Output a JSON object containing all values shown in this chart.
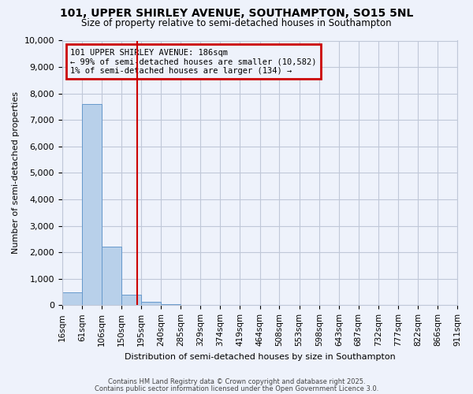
{
  "title": "101, UPPER SHIRLEY AVENUE, SOUTHAMPTON, SO15 5NL",
  "subtitle": "Size of property relative to semi-detached houses in Southampton",
  "xlabel": "Distribution of semi-detached houses by size in Southampton",
  "ylabel": "Number of semi-detached properties",
  "bg_color": "#eef2fb",
  "bar_color": "#b8d0ea",
  "bar_edge_color": "#6699cc",
  "grid_color": "#c0c8d8",
  "vline_color": "#cc0000",
  "vline_x": 186,
  "annotation_line1": "101 UPPER SHIRLEY AVENUE: 186sqm",
  "annotation_line2": "← 99% of semi-detached houses are smaller (10,582)",
  "annotation_line3": "1% of semi-detached houses are larger (134) →",
  "annotation_box_color": "#cc0000",
  "bin_edges": [
    16,
    61,
    106,
    150,
    195,
    240,
    285,
    329,
    374,
    419,
    464,
    508,
    553,
    598,
    643,
    687,
    732,
    777,
    822,
    866,
    911
  ],
  "bin_labels": [
    "16sqm",
    "61sqm",
    "106sqm",
    "150sqm",
    "195sqm",
    "240sqm",
    "285sqm",
    "329sqm",
    "374sqm",
    "419sqm",
    "464sqm",
    "508sqm",
    "553sqm",
    "598sqm",
    "643sqm",
    "687sqm",
    "732sqm",
    "777sqm",
    "822sqm",
    "866sqm",
    "911sqm"
  ],
  "bar_heights": [
    500,
    7600,
    2200,
    400,
    130,
    50,
    10,
    5,
    2,
    1,
    0,
    0,
    0,
    0,
    0,
    0,
    0,
    0,
    0,
    0
  ],
  "ylim": [
    0,
    10000
  ],
  "yticks": [
    0,
    1000,
    2000,
    3000,
    4000,
    5000,
    6000,
    7000,
    8000,
    9000,
    10000
  ],
  "footer1": "Contains HM Land Registry data © Crown copyright and database right 2025.",
  "footer2": "Contains public sector information licensed under the Open Government Licence 3.0."
}
